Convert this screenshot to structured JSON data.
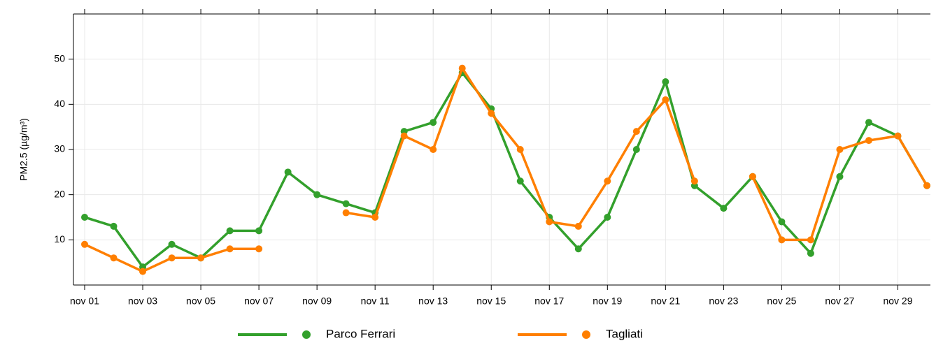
{
  "chart_data": {
    "type": "line",
    "y_label": "PM2.5 (µg/m³)",
    "categories": [
      "nov 01",
      null,
      "nov 03",
      null,
      "nov 05",
      null,
      "nov 07",
      null,
      "nov 09",
      null,
      "nov 11",
      null,
      "nov 13",
      null,
      "nov 15",
      null,
      "nov 17",
      null,
      "nov 19",
      null,
      "nov 21",
      null,
      "nov 23",
      null,
      "nov 25",
      null,
      "nov 27",
      null,
      "nov 29",
      null
    ],
    "series": [
      {
        "name": "Parco Ferrari",
        "color": "#33a02c",
        "values": [
          15,
          13,
          4,
          9,
          6,
          12,
          12,
          25,
          20,
          18,
          16,
          34,
          36,
          47,
          39,
          23,
          15,
          8,
          15,
          30,
          45,
          22,
          17,
          24,
          14,
          7,
          24,
          36,
          33,
          22
        ]
      },
      {
        "name": "Tagliati",
        "color": "#ff7f00",
        "values": [
          9,
          6,
          3,
          6,
          6,
          8,
          8,
          null,
          null,
          16,
          15,
          33,
          30,
          48,
          38,
          30,
          14,
          13,
          23,
          34,
          41,
          23,
          null,
          24,
          10,
          10,
          30,
          32,
          33,
          22
        ]
      }
    ],
    "ylim": [
      0,
      60
    ],
    "yticks": [
      10,
      20,
      30,
      40,
      50
    ],
    "grid": true,
    "legend": "bottom"
  }
}
